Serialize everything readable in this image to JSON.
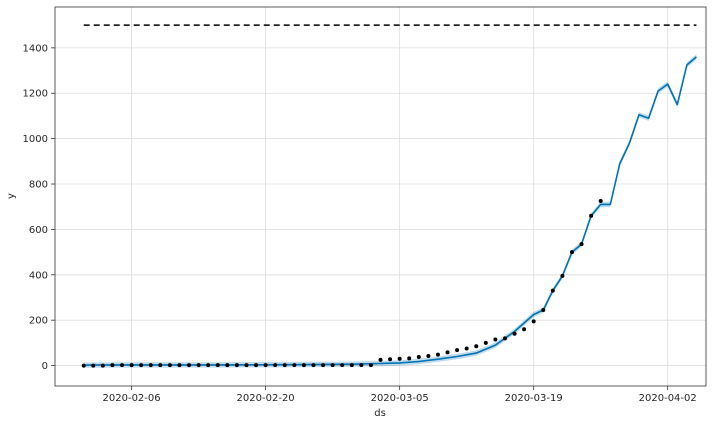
{
  "chart_data": {
    "type": "line",
    "title": "",
    "xlabel": "ds",
    "ylabel": "y",
    "x_ticks": [
      "2020-02-06",
      "2020-02-20",
      "2020-03-05",
      "2020-03-19",
      "2020-04-02"
    ],
    "y_ticks": [
      0,
      200,
      400,
      600,
      800,
      1000,
      1200,
      1400
    ],
    "xlim": [
      "2020-01-29",
      "2020-04-06"
    ],
    "ylim": [
      -90,
      1580
    ],
    "grid": true,
    "cap": 1500,
    "series": [
      {
        "kind": "observed-points",
        "x": [
          "2020-02-01",
          "2020-02-02",
          "2020-02-03",
          "2020-02-04",
          "2020-02-05",
          "2020-02-06",
          "2020-02-07",
          "2020-02-08",
          "2020-02-09",
          "2020-02-10",
          "2020-02-11",
          "2020-02-12",
          "2020-02-13",
          "2020-02-14",
          "2020-02-15",
          "2020-02-16",
          "2020-02-17",
          "2020-02-18",
          "2020-02-19",
          "2020-02-20",
          "2020-02-21",
          "2020-02-22",
          "2020-02-23",
          "2020-02-24",
          "2020-02-25",
          "2020-02-26",
          "2020-02-27",
          "2020-02-28",
          "2020-02-29",
          "2020-03-01",
          "2020-03-02",
          "2020-03-03",
          "2020-03-04",
          "2020-03-05",
          "2020-03-06",
          "2020-03-07",
          "2020-03-08",
          "2020-03-09",
          "2020-03-10",
          "2020-03-11",
          "2020-03-12",
          "2020-03-13",
          "2020-03-14",
          "2020-03-15",
          "2020-03-16",
          "2020-03-17",
          "2020-03-18",
          "2020-03-19",
          "2020-03-20",
          "2020-03-21",
          "2020-03-22",
          "2020-03-23",
          "2020-03-24",
          "2020-03-25",
          "2020-03-26"
        ],
        "y": [
          0,
          0,
          0,
          2,
          2,
          2,
          2,
          2,
          2,
          2,
          2,
          2,
          2,
          2,
          2,
          2,
          2,
          2,
          2,
          2,
          2,
          2,
          2,
          2,
          2,
          2,
          2,
          2,
          2,
          2,
          2,
          25,
          28,
          30,
          32,
          38,
          42,
          48,
          58,
          68,
          75,
          85,
          100,
          115,
          120,
          140,
          160,
          195,
          245,
          330,
          395,
          500,
          535,
          660,
          725
        ]
      },
      {
        "kind": "forecast",
        "x": [
          "2020-02-01",
          "2020-02-08",
          "2020-02-15",
          "2020-02-22",
          "2020-02-29",
          "2020-03-03",
          "2020-03-05",
          "2020-03-07",
          "2020-03-09",
          "2020-03-11",
          "2020-03-13",
          "2020-03-15",
          "2020-03-17",
          "2020-03-19",
          "2020-03-20",
          "2020-03-21",
          "2020-03-22",
          "2020-03-23",
          "2020-03-24",
          "2020-03-25",
          "2020-03-26",
          "2020-03-27",
          "2020-03-28",
          "2020-03-29",
          "2020-03-30",
          "2020-03-31",
          "2020-04-01",
          "2020-04-02",
          "2020-04-03",
          "2020-04-04",
          "2020-04-05"
        ],
        "y": [
          2,
          3,
          3,
          4,
          6,
          9,
          12,
          18,
          28,
          40,
          55,
          90,
          150,
          225,
          245,
          330,
          395,
          500,
          535,
          660,
          710,
          710,
          890,
          980,
          1105,
          1090,
          1210,
          1240,
          1150,
          1325,
          1360
        ]
      }
    ]
  }
}
